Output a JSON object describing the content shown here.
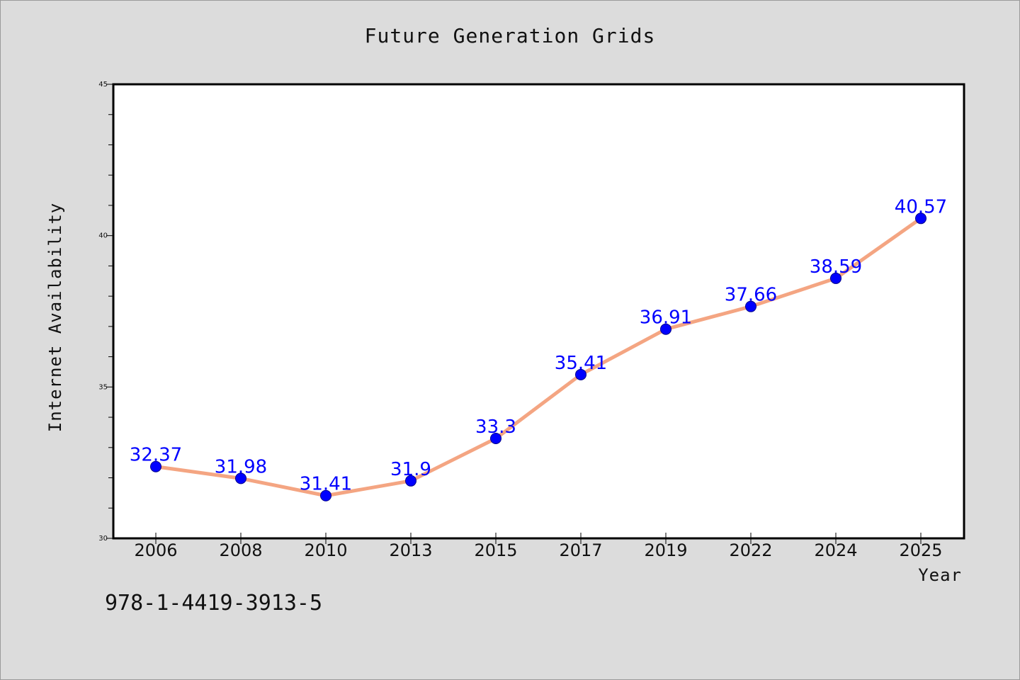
{
  "chart_data": {
    "type": "line",
    "title": "Future Generation Grids",
    "xlabel": "Year",
    "ylabel": "Internet Availability",
    "categories": [
      "2006",
      "2008",
      "2010",
      "2013",
      "2015",
      "2017",
      "2019",
      "2022",
      "2024",
      "2025"
    ],
    "series": [
      {
        "values": [
          32.37,
          31.98,
          31.41,
          31.9,
          33.3,
          35.41,
          36.91,
          37.66,
          38.59,
          40.57
        ],
        "labels": [
          "32.37",
          "31.98",
          "31.41",
          "31.9",
          "33.3",
          "35.41",
          "36.91",
          "37.66",
          "38.59",
          "40.57"
        ]
      }
    ],
    "ylim": [
      30,
      45
    ],
    "yticks": [
      "30",
      "35",
      "40",
      "45"
    ],
    "grid": false,
    "line_color": "#f4a582",
    "marker_color": "#0000ff",
    "label_color": "#0000ff"
  },
  "footer": {
    "isbn": "978-1-4419-3913-5"
  }
}
